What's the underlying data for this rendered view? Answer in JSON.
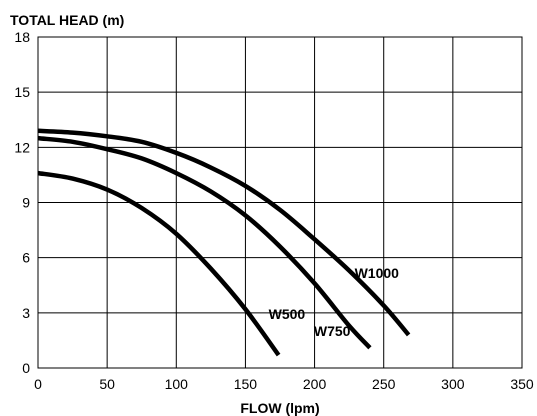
{
  "chart_data": {
    "type": "line",
    "ylabel": "TOTAL HEAD (m)",
    "xlabel": "FLOW (lpm)",
    "xlim": [
      0,
      350
    ],
    "ylim": [
      0,
      18
    ],
    "xticks": [
      0,
      50,
      100,
      150,
      200,
      250,
      300,
      350
    ],
    "yticks": [
      0,
      3,
      6,
      9,
      12,
      15,
      18
    ],
    "grid": true,
    "series": [
      {
        "name": "W500",
        "points": [
          [
            0,
            10.6
          ],
          [
            25,
            10.3
          ],
          [
            50,
            9.7
          ],
          [
            75,
            8.7
          ],
          [
            100,
            7.3
          ],
          [
            125,
            5.4
          ],
          [
            150,
            3.2
          ],
          [
            174,
            0.7
          ]
        ]
      },
      {
        "name": "W750",
        "points": [
          [
            0,
            12.5
          ],
          [
            25,
            12.3
          ],
          [
            50,
            11.9
          ],
          [
            75,
            11.4
          ],
          [
            100,
            10.6
          ],
          [
            125,
            9.6
          ],
          [
            150,
            8.3
          ],
          [
            175,
            6.6
          ],
          [
            200,
            4.6
          ],
          [
            225,
            2.3
          ],
          [
            240,
            1.1
          ]
        ]
      },
      {
        "name": "W1000",
        "points": [
          [
            0,
            12.9
          ],
          [
            25,
            12.8
          ],
          [
            50,
            12.6
          ],
          [
            75,
            12.3
          ],
          [
            100,
            11.7
          ],
          [
            125,
            10.9
          ],
          [
            150,
            9.9
          ],
          [
            175,
            8.6
          ],
          [
            200,
            7.0
          ],
          [
            225,
            5.3
          ],
          [
            250,
            3.4
          ],
          [
            268,
            1.8
          ]
        ]
      }
    ]
  }
}
